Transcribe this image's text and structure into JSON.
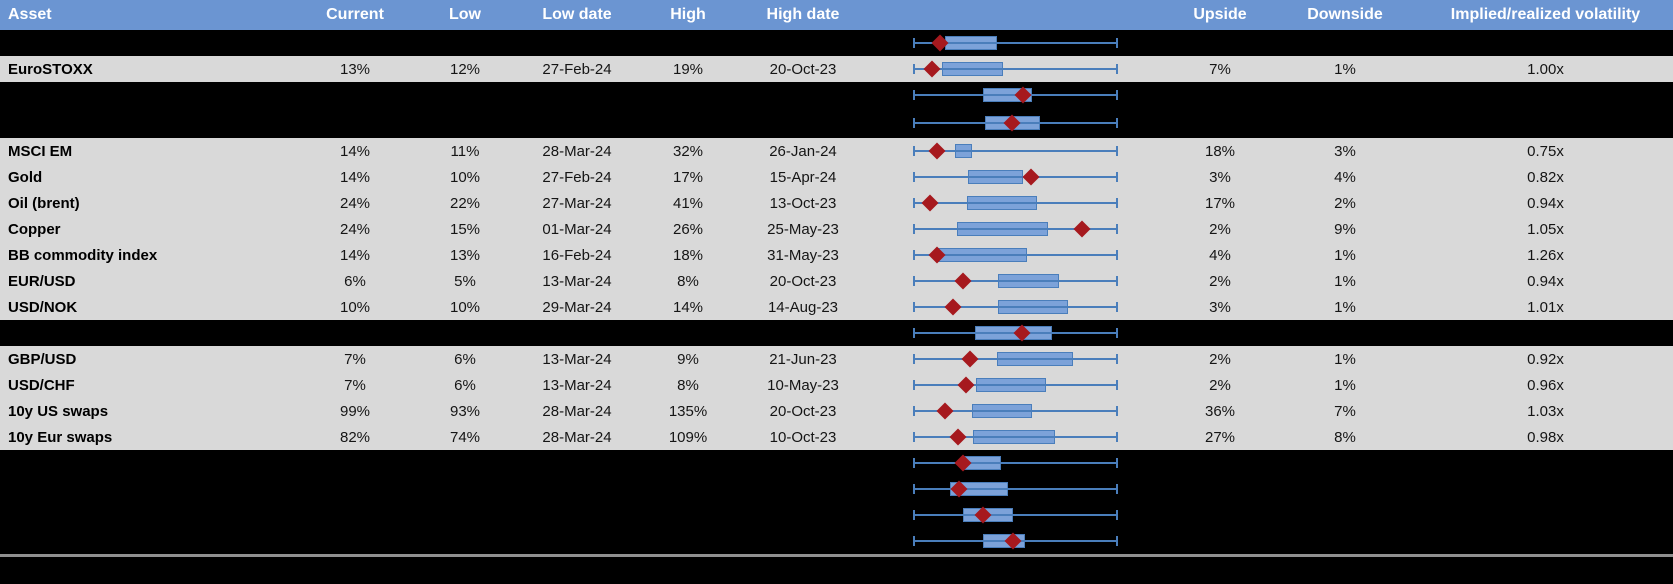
{
  "colors": {
    "header_bg": "#6b95d2",
    "header_text": "#ffffff",
    "row_bg": "#d9d9d9",
    "hidden_row_bg": "#000000",
    "box_fill": "#7ca2d9",
    "whisker": "#4a7ebb",
    "marker": "#a6191e",
    "divider": "#8f8f8f"
  },
  "chart_data": {
    "type": "table",
    "title": "",
    "legend_position": "none",
    "grid": false,
    "boxplot_scale": "box left/right edges and diamond marker position are normalized 0-1 across each row's whisker span (whiskers = full range)",
    "columns": [
      {
        "key": "asset",
        "label": "Asset"
      },
      {
        "key": "current",
        "label": "Current"
      },
      {
        "key": "low",
        "label": "Low"
      },
      {
        "key": "low_date",
        "label": "Low date"
      },
      {
        "key": "high",
        "label": "High"
      },
      {
        "key": "high_date",
        "label": "High date"
      },
      {
        "key": "range_chart",
        "label": ""
      },
      {
        "key": "upside",
        "label": "Upside"
      },
      {
        "key": "downside",
        "label": "Downside"
      },
      {
        "key": "impl_real",
        "label": "Implied/realized volatility"
      }
    ],
    "rows": [
      {
        "type": "hidden",
        "box": {
          "l": 0.156,
          "r": 0.41,
          "d": 0.132
        }
      },
      {
        "type": "data",
        "asset": "EuroSTOXX",
        "current": "13%",
        "low": "12%",
        "low_date": "27-Feb-24",
        "high": "19%",
        "high_date": "20-Oct-23",
        "upside": "7%",
        "downside": "1%",
        "impl_real": "1.00x",
        "box": {
          "l": 0.141,
          "r": 0.439,
          "d": 0.093
        }
      },
      {
        "type": "hidden",
        "box": {
          "l": 0.341,
          "r": 0.58,
          "d": 0.537
        }
      },
      {
        "type": "hidden",
        "box": {
          "l": 0.351,
          "r": 0.62,
          "d": 0.483
        }
      },
      {
        "type": "data",
        "asset": "MSCI EM",
        "current": "14%",
        "low": "11%",
        "low_date": "28-Mar-24",
        "high": "32%",
        "high_date": "26-Jan-24",
        "upside": "18%",
        "downside": "3%",
        "impl_real": "0.75x",
        "box": {
          "l": 0.205,
          "r": 0.288,
          "d": 0.117
        }
      },
      {
        "type": "data",
        "asset": "Gold",
        "current": "14%",
        "low": "10%",
        "low_date": "27-Feb-24",
        "high": "17%",
        "high_date": "15-Apr-24",
        "upside": "3%",
        "downside": "4%",
        "impl_real": "0.82x",
        "box": {
          "l": 0.268,
          "r": 0.537,
          "d": 0.576
        }
      },
      {
        "type": "data",
        "asset": "Oil (brent)",
        "current": "24%",
        "low": "22%",
        "low_date": "27-Mar-24",
        "high": "41%",
        "high_date": "13-Oct-23",
        "upside": "17%",
        "downside": "2%",
        "impl_real": "0.94x",
        "box": {
          "l": 0.263,
          "r": 0.605,
          "d": 0.083
        }
      },
      {
        "type": "data",
        "asset": "Copper",
        "current": "24%",
        "low": "15%",
        "low_date": "01-Mar-24",
        "high": "26%",
        "high_date": "25-May-23",
        "upside": "2%",
        "downside": "9%",
        "impl_real": "1.05x",
        "box": {
          "l": 0.215,
          "r": 0.659,
          "d": 0.824
        }
      },
      {
        "type": "data",
        "asset": "BB commodity index",
        "current": "14%",
        "low": "13%",
        "low_date": "16-Feb-24",
        "high": "18%",
        "high_date": "31-May-23",
        "upside": "4%",
        "downside": "1%",
        "impl_real": "1.26x",
        "box": {
          "l": 0.122,
          "r": 0.556,
          "d": 0.117
        }
      },
      {
        "type": "data",
        "asset": "EUR/USD",
        "current": "6%",
        "low": "5%",
        "low_date": "13-Mar-24",
        "high": "8%",
        "high_date": "20-Oct-23",
        "upside": "2%",
        "downside": "1%",
        "impl_real": "0.94x",
        "box": {
          "l": 0.415,
          "r": 0.712,
          "d": 0.244
        }
      },
      {
        "type": "data",
        "asset": "USD/NOK",
        "current": "10%",
        "low": "10%",
        "low_date": "29-Mar-24",
        "high": "14%",
        "high_date": "14-Aug-23",
        "upside": "3%",
        "downside": "1%",
        "impl_real": "1.01x",
        "box": {
          "l": 0.415,
          "r": 0.756,
          "d": 0.195
        }
      },
      {
        "type": "hidden",
        "box": {
          "l": 0.302,
          "r": 0.678,
          "d": 0.532
        }
      },
      {
        "type": "data",
        "asset": "GBP/USD",
        "current": "7%",
        "low": "6%",
        "low_date": "13-Mar-24",
        "high": "9%",
        "high_date": "21-Jun-23",
        "upside": "2%",
        "downside": "1%",
        "impl_real": "0.92x",
        "box": {
          "l": 0.41,
          "r": 0.78,
          "d": 0.278
        }
      },
      {
        "type": "data",
        "asset": "USD/CHF",
        "current": "7%",
        "low": "6%",
        "low_date": "13-Mar-24",
        "high": "8%",
        "high_date": "10-May-23",
        "upside": "2%",
        "downside": "1%",
        "impl_real": "0.96x",
        "box": {
          "l": 0.307,
          "r": 0.649,
          "d": 0.259
        }
      },
      {
        "type": "data",
        "asset": "10y US swaps",
        "current": "99%",
        "low": "93%",
        "low_date": "28-Mar-24",
        "high": "135%",
        "high_date": "20-Oct-23",
        "upside": "36%",
        "downside": "7%",
        "impl_real": "1.03x",
        "box": {
          "l": 0.288,
          "r": 0.58,
          "d": 0.156
        }
      },
      {
        "type": "data",
        "asset": "10y Eur swaps",
        "current": "82%",
        "low": "74%",
        "low_date": "28-Mar-24",
        "high": "109%",
        "high_date": "10-Oct-23",
        "upside": "27%",
        "downside": "8%",
        "impl_real": "0.98x",
        "box": {
          "l": 0.293,
          "r": 0.693,
          "d": 0.22
        }
      },
      {
        "type": "hidden",
        "box": {
          "l": 0.244,
          "r": 0.429,
          "d": 0.244
        }
      },
      {
        "type": "hidden",
        "box": {
          "l": 0.18,
          "r": 0.463,
          "d": 0.224
        }
      },
      {
        "type": "hidden",
        "box": {
          "l": 0.244,
          "r": 0.488,
          "d": 0.341
        }
      },
      {
        "type": "hidden",
        "box": {
          "l": 0.341,
          "r": 0.546,
          "d": 0.488
        }
      }
    ]
  }
}
